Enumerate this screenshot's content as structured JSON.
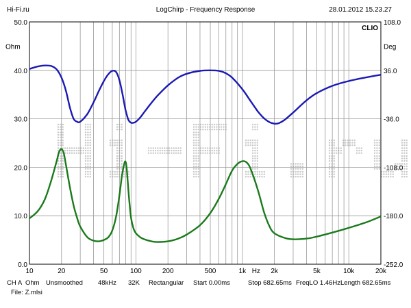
{
  "header": {
    "site": "Hi-Fi.ru",
    "title": "LogChirp - Frequency Response",
    "datetime": "28.01.2012 15.23.27"
  },
  "brand": {
    "clio": "CLIO",
    "watermark": "Hi-Fi.ru"
  },
  "colors": {
    "magnitude": "#1a1ab4",
    "phase": "#1a7a1a",
    "grid": "#9a9a9a",
    "frame": "#000000",
    "watermark": "#c8c8c8"
  },
  "footer": {
    "items": [
      "CH A",
      "Ohm",
      "Unsmoothed",
      "48kHz",
      "32K",
      "Rectangular",
      "Start 0.00ms",
      "Stop 682.65ms",
      "FreqLO 1.46Hz",
      "Length 682.65ms"
    ],
    "file": "File: Z.mlsi"
  },
  "chart_data": {
    "type": "line",
    "xscale": "log",
    "xlim": [
      10,
      20000
    ],
    "x_ticks": [
      10,
      20,
      50,
      100,
      200,
      500,
      1000,
      2000,
      5000,
      10000,
      20000
    ],
    "x_tick_labels": [
      "10",
      "20",
      "50",
      "100",
      "200",
      "500",
      "1k",
      "2k",
      "5k",
      "10k",
      "20k"
    ],
    "x_unit": "Hz",
    "y_left": {
      "unit": "Ohm",
      "lim": [
        0,
        50
      ],
      "ticks": [
        0,
        10,
        20,
        30,
        40,
        50
      ],
      "tick_labels": [
        "0.0",
        "10.0",
        "20.0",
        "30.0",
        "40.0",
        "50.0"
      ]
    },
    "y_right": {
      "unit": "Deg",
      "lim": [
        -252,
        108
      ],
      "ticks": [
        -252,
        -180,
        -108,
        -36,
        36,
        108
      ],
      "tick_labels": [
        "-252.0",
        "-180.0",
        "-108.0",
        "-36.0",
        "36.0",
        "108.0"
      ]
    },
    "grid": true,
    "series": [
      {
        "axis": "left",
        "color": "#1a1ab4",
        "x": [
          10,
          12,
          14,
          16,
          18,
          20,
          22,
          24,
          26,
          28,
          30,
          35,
          40,
          45,
          50,
          55,
          60,
          65,
          70,
          75,
          80,
          85,
          90,
          95,
          100,
          110,
          120,
          140,
          160,
          200,
          250,
          300,
          400,
          500,
          600,
          700,
          800,
          1000,
          1200,
          1400,
          1600,
          1800,
          2000,
          2200,
          2500,
          3000,
          4000,
          5000,
          7000,
          10000,
          15000,
          20000
        ],
        "y": [
          40.3,
          40.8,
          41.0,
          40.9,
          40.2,
          38.5,
          35.8,
          32.3,
          30.0,
          29.4,
          29.4,
          31.0,
          33.4,
          35.8,
          37.8,
          39.2,
          39.9,
          39.7,
          38.0,
          35.0,
          31.8,
          29.8,
          29.2,
          29.2,
          29.4,
          30.3,
          31.4,
          33.3,
          34.8,
          36.9,
          38.5,
          39.3,
          39.9,
          40.0,
          39.9,
          39.4,
          38.5,
          36.1,
          33.6,
          31.5,
          30.1,
          29.3,
          29.0,
          29.1,
          29.8,
          31.3,
          33.8,
          35.3,
          36.8,
          37.8,
          38.6,
          39.1
        ]
      },
      {
        "axis": "right",
        "color": "#1a7a1a",
        "x": [
          10,
          12,
          14,
          16,
          18,
          19,
          20,
          21,
          22,
          24,
          26,
          28,
          30,
          35,
          40,
          45,
          50,
          55,
          60,
          65,
          70,
          74,
          78,
          80,
          82,
          86,
          90,
          95,
          100,
          110,
          120,
          140,
          160,
          200,
          250,
          300,
          400,
          500,
          600,
          700,
          800,
          900,
          1000,
          1100,
          1200,
          1400,
          1600,
          1800,
          2000,
          2500,
          3000,
          4000,
          5000,
          7000,
          10000,
          15000,
          20000
        ],
        "y": [
          -184,
          -173,
          -155,
          -128,
          -99,
          -85,
          -81,
          -87,
          -104,
          -138,
          -165,
          -183,
          -196,
          -212,
          -217,
          -218,
          -216,
          -212,
          -202,
          -182,
          -150,
          -120,
          -102,
          -100,
          -110,
          -152,
          -183,
          -199,
          -206,
          -212,
          -215,
          -218,
          -219,
          -218,
          -214,
          -208,
          -194,
          -176,
          -155,
          -133,
          -113,
          -103,
          -99,
          -101,
          -111,
          -142,
          -175,
          -196,
          -206,
          -213,
          -215,
          -214,
          -211,
          -205,
          -198,
          -189,
          -181
        ]
      }
    ]
  }
}
